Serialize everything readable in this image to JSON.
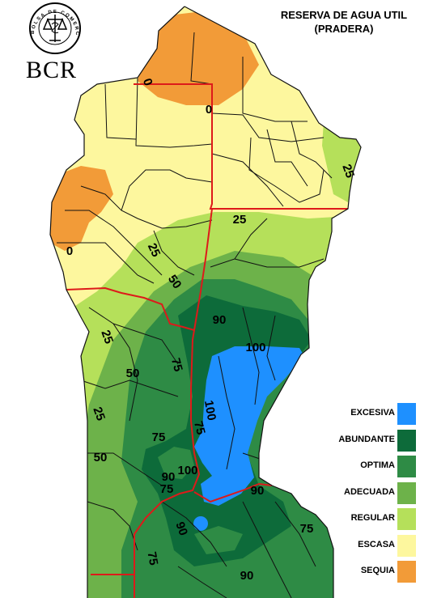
{
  "header": {
    "title_line1": "RESERVA DE AGUA UTIL",
    "title_line2": "(PRADERA)"
  },
  "logo": {
    "ring_text": "BOLSA DE COMERCIO DE ROSARIO",
    "abbreviation": "BCR"
  },
  "legend": {
    "items": [
      {
        "label": "EXCESIVA",
        "color": "#1e90ff"
      },
      {
        "label": "ABUNDANTE",
        "color": "#0d6b3a"
      },
      {
        "label": "OPTIMA",
        "color": "#2e8b45"
      },
      {
        "label": "ADECUADA",
        "color": "#6db24a"
      },
      {
        "label": "REGULAR",
        "color": "#b5e05a"
      },
      {
        "label": "ESCASA",
        "color": "#fdf79e"
      },
      {
        "label": "SEQUIA",
        "color": "#f29b38"
      }
    ]
  },
  "contour_labels": [
    "0",
    "0",
    "0",
    "25",
    "25",
    "25",
    "25",
    "25",
    "50",
    "50",
    "50",
    "75",
    "75",
    "75",
    "75",
    "75",
    "75",
    "90",
    "90",
    "90",
    "90",
    "90",
    "100",
    "100",
    "100"
  ],
  "colors": {
    "province_border": "#dd1a1a",
    "department_line": "#111111"
  }
}
